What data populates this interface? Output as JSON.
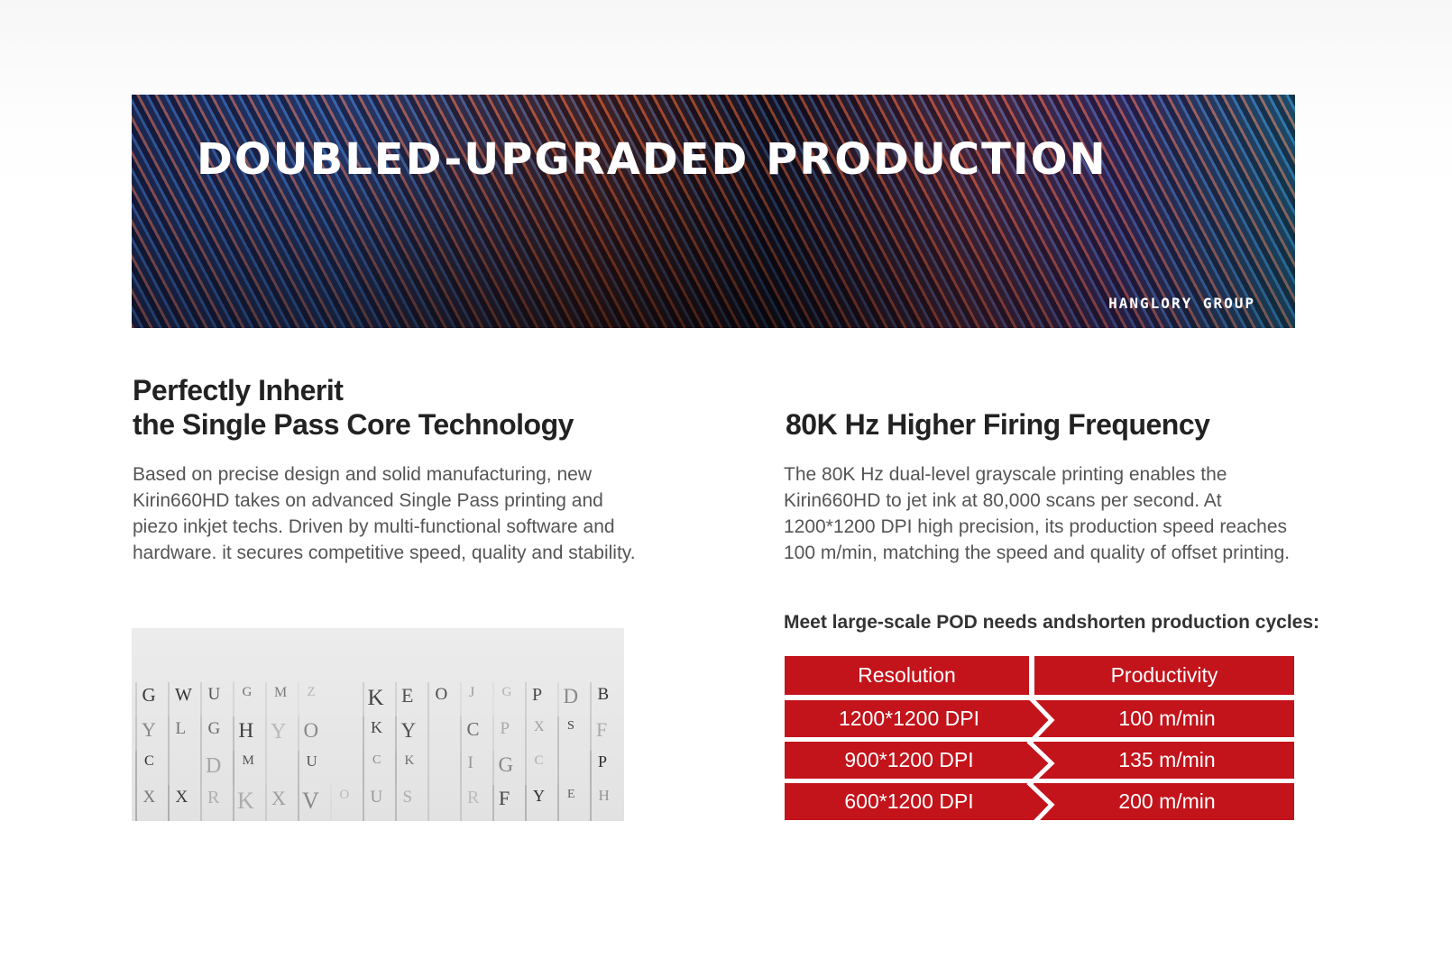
{
  "banner": {
    "title": "DOUBLED-UPGRADED PRODUCTION",
    "brand": "HANGLORY GROUP"
  },
  "left": {
    "heading_line1": "Perfectly Inherit",
    "heading_line2": "the Single Pass Core Technology",
    "paragraph": [
      "Based on precise design and solid manufacturing, new",
      "Kirin660HD takes on advanced Single Pass printing and",
      "piezo inkjet techs. Driven by multi-functional software and",
      "hardware. it secures competitive speed, quality and stability."
    ]
  },
  "right": {
    "heading": "80K Hz Higher Firing Frequency",
    "paragraph": [
      "The 80K Hz dual-level grayscale printing enables the",
      "Kirin660HD to jet ink at 80,000 scans per second. At",
      "1200*1200 DPI high precision, its production speed reaches",
      "100 m/min, matching the speed and quality of offset printing."
    ],
    "subheading": "Meet large-scale POD needs andshorten production cycles:"
  },
  "table": {
    "headers": [
      "Resolution",
      "Productivity"
    ],
    "rows": [
      [
        "1200*1200 DPI",
        "100 m/min"
      ],
      [
        "900*1200 DPI",
        "135 m/min"
      ],
      [
        "600*1200 DPI",
        "200 m/min"
      ]
    ],
    "color": "#c3131b"
  }
}
